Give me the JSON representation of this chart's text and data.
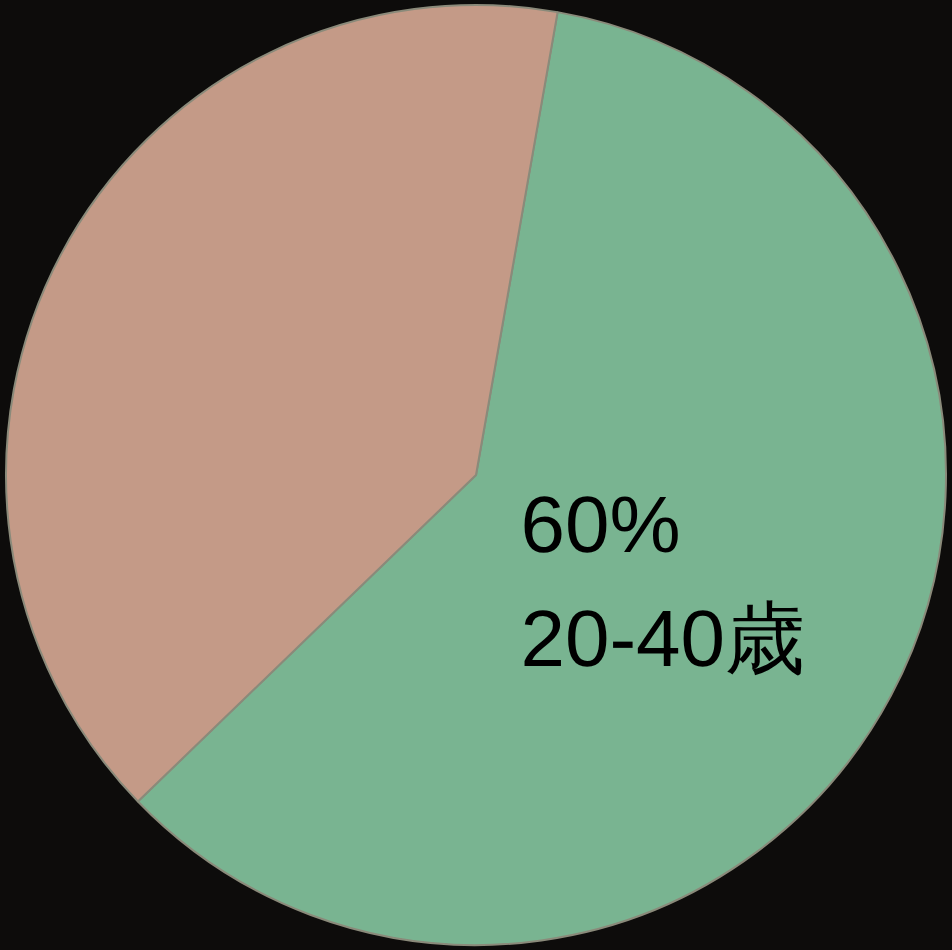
{
  "chart_data": {
    "type": "pie",
    "categories": [
      "20-40歳",
      null
    ],
    "values": [
      60,
      40
    ],
    "colors": [
      "#79b491",
      "#c49a87"
    ],
    "value_labels": [
      "60%",
      null
    ],
    "legend": false
  }
}
